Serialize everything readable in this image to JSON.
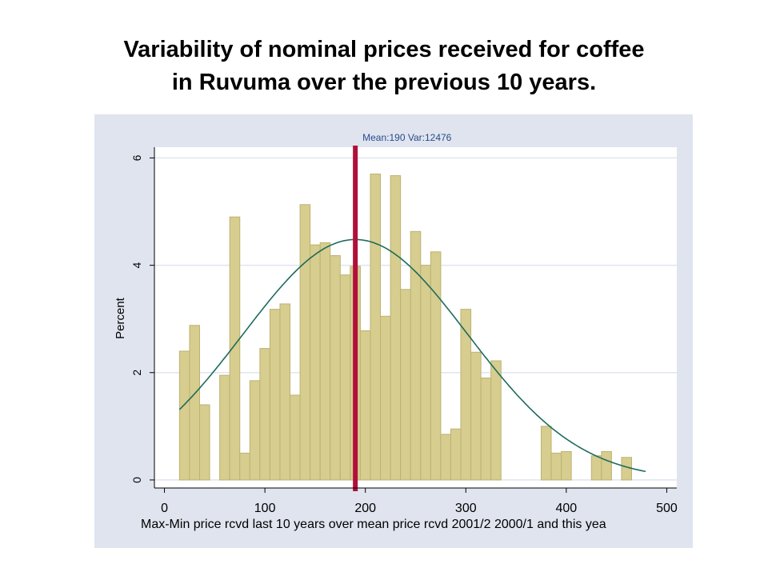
{
  "slide": {
    "title_line1": "Variability of nominal prices received for coffee",
    "title_line2": "in Ruvuma over the previous 10 years."
  },
  "colors": {
    "panel_bg": "#dfe4ef",
    "plot_bg": "#ffffff",
    "bar_fill": "#d6cd8e",
    "bar_stroke": "#bdb273",
    "curve": "#1e6b5e",
    "mean_line": "#b0103a"
  },
  "chart_data": {
    "type": "bar",
    "xlabel": "Max-Min price rcvd last 10 years over mean price rcvd 2001/2 2000/1 and this yea",
    "ylabel": "Percent",
    "xlim": [
      -10,
      510
    ],
    "ylim": [
      -0.15,
      6.2
    ],
    "xticks": [
      0,
      100,
      200,
      300,
      400,
      500
    ],
    "yticks": [
      0,
      2,
      4,
      6
    ],
    "grid": true,
    "bin_width": 10,
    "bins": [
      {
        "x0": 15,
        "value": 2.4
      },
      {
        "x0": 25,
        "value": 2.88
      },
      {
        "x0": 35,
        "value": 1.4
      },
      {
        "x0": 55,
        "value": 1.95
      },
      {
        "x0": 65,
        "value": 4.9
      },
      {
        "x0": 75,
        "value": 0.5
      },
      {
        "x0": 85,
        "value": 1.85
      },
      {
        "x0": 95,
        "value": 2.45
      },
      {
        "x0": 105,
        "value": 3.18
      },
      {
        "x0": 115,
        "value": 3.28
      },
      {
        "x0": 125,
        "value": 1.58
      },
      {
        "x0": 135,
        "value": 5.13
      },
      {
        "x0": 145,
        "value": 4.38
      },
      {
        "x0": 155,
        "value": 4.42
      },
      {
        "x0": 165,
        "value": 4.18
      },
      {
        "x0": 175,
        "value": 3.82
      },
      {
        "x0": 185,
        "value": 3.98
      },
      {
        "x0": 195,
        "value": 2.78
      },
      {
        "x0": 205,
        "value": 5.7
      },
      {
        "x0": 215,
        "value": 3.05
      },
      {
        "x0": 225,
        "value": 5.67
      },
      {
        "x0": 235,
        "value": 3.55
      },
      {
        "x0": 245,
        "value": 4.63
      },
      {
        "x0": 255,
        "value": 4.0
      },
      {
        "x0": 265,
        "value": 4.25
      },
      {
        "x0": 275,
        "value": 0.85
      },
      {
        "x0": 285,
        "value": 0.95
      },
      {
        "x0": 295,
        "value": 3.18
      },
      {
        "x0": 305,
        "value": 2.38
      },
      {
        "x0": 315,
        "value": 1.9
      },
      {
        "x0": 325,
        "value": 2.22
      },
      {
        "x0": 375,
        "value": 1.0
      },
      {
        "x0": 385,
        "value": 0.5
      },
      {
        "x0": 395,
        "value": 0.53
      },
      {
        "x0": 425,
        "value": 0.45
      },
      {
        "x0": 435,
        "value": 0.53
      },
      {
        "x0": 455,
        "value": 0.42
      }
    ],
    "normal_curve": {
      "mean": 190,
      "sd": 111.7,
      "peak": 4.48,
      "x_range": [
        15,
        480
      ]
    },
    "mean_line": {
      "x": 190,
      "label": "Mean:190 Var:12476"
    }
  }
}
